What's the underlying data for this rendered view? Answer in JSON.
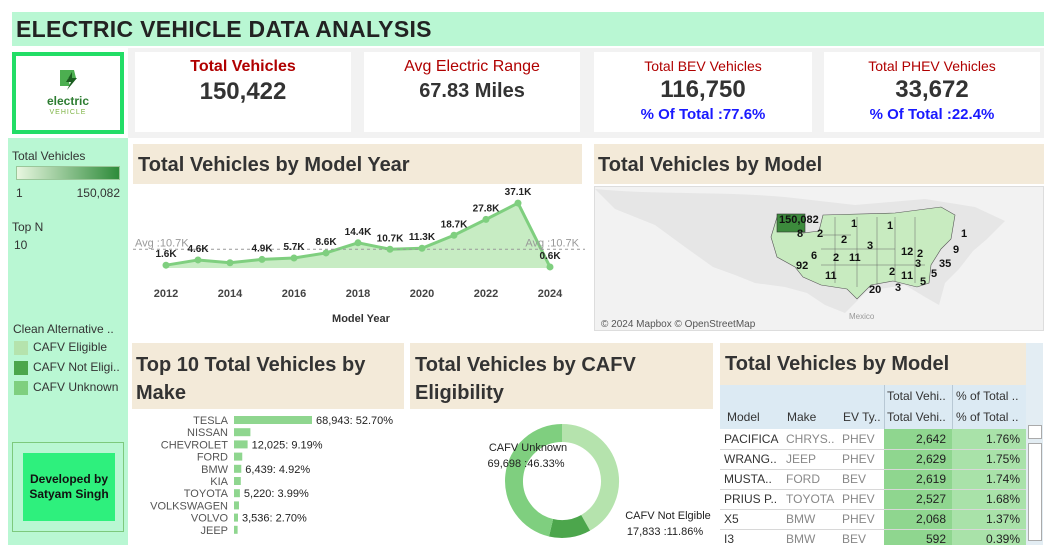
{
  "title": "ELECTRIC VEHICLE DATA ANALYSIS",
  "logo": {
    "line1": "electric",
    "line2": "VEHICLE"
  },
  "kpis": {
    "total_vehicles": {
      "label": "Total Vehicles",
      "value": "150,422"
    },
    "avg_range": {
      "label": "Avg Electric Range",
      "value": "67.83 Miles"
    },
    "bev": {
      "label": "Total BEV Vehicles",
      "value": "116,750",
      "pct": "% Of Total :77.6%"
    },
    "phev": {
      "label": "Total PHEV Vehicles",
      "value": "33,672",
      "pct": "% Of Total :22.4%"
    }
  },
  "sidebar": {
    "legend_title": "Total Vehicles",
    "legend_min": "1",
    "legend_max": "150,082",
    "topn_label": "Top N",
    "topn_value": "10",
    "cafv_title": "Clean Alternative ..",
    "cafv_items": [
      {
        "label": "CAFV  Eligible",
        "color": "#b5e3ad"
      },
      {
        "label": "CAFV Not Eligi..",
        "color": "#4ca64c"
      },
      {
        "label": "CAFV Unknown",
        "color": "#7fcf7f"
      }
    ],
    "developer": "Developed by Satyam Singh"
  },
  "year_chart": {
    "title": "Total Vehicles by Model Year",
    "xlabel": "Model Year",
    "avg_label": "Avg :10.7K",
    "x_ticks": [
      "2012",
      "2014",
      "2016",
      "2018",
      "2020",
      "2022",
      "2024"
    ],
    "chart_data": {
      "type": "area",
      "x": [
        2012,
        2013,
        2014,
        2015,
        2016,
        2017,
        2018,
        2019,
        2020,
        2021,
        2022,
        2023,
        2024
      ],
      "values": [
        1.6,
        4.6,
        3.0,
        4.9,
        5.7,
        8.6,
        14.4,
        10.7,
        11.3,
        18.7,
        27.8,
        37.1,
        0.6
      ],
      "labels": [
        "1.6K",
        "4.6K",
        "",
        "4.9K",
        "5.7K",
        "8.6K",
        "14.4K",
        "10.7K",
        "11.3K",
        "18.7K",
        "27.8K",
        "37.1K",
        "0.6K"
      ],
      "xlabel": "Model Year",
      "ylim": [
        0,
        40
      ],
      "avg": 10.7
    }
  },
  "map_panel": {
    "title": "Total Vehicles by Model",
    "credit": "© 2024 Mapbox © OpenStreetMap",
    "country_label": "Mexico",
    "state_labels": [
      "150,082",
      "8",
      "2",
      "1",
      "2",
      "3",
      "1",
      "92",
      "6",
      "2",
      "11",
      "12",
      "2",
      "3",
      "35",
      "9",
      "11",
      "2",
      "1",
      "5",
      "20",
      "3",
      "1",
      "5",
      "1"
    ]
  },
  "make_chart": {
    "title": "Top 10 Total Vehicles by Make",
    "chart_data": {
      "type": "bar",
      "categories": [
        "TESLA",
        "NISSAN",
        "CHEVROLET",
        "FORD",
        "BMW",
        "KIA",
        "TOYOTA",
        "VOLKSWAGEN",
        "VOLVO",
        "JEEP"
      ],
      "values": [
        68943,
        14500,
        12025,
        7300,
        6439,
        6000,
        5220,
        4400,
        3536,
        3200
      ],
      "labels": [
        "68,943: 52.70%",
        "",
        "12,025: 9.19%",
        "",
        "6,439: 4.92%",
        "",
        "5,220: 3.99%",
        "",
        "3,536: 2.70%",
        ""
      ]
    }
  },
  "cafv_chart": {
    "title": "Total Vehicles by CAFV Eligibility",
    "chart_data": {
      "type": "pie",
      "categories": [
        "CAFV  Eligible",
        "CAFV Not Elgible",
        "CAFV Unknown"
      ],
      "values": [
        62891,
        17833,
        69698
      ],
      "labels": [
        "",
        "CAFV Not Elgible 17,833 :11.86%",
        "CAFV Unknown 69,698 :46.33%"
      ]
    },
    "unknown_label": "CAFV Unknown",
    "unknown_value": "69,698 :46.33%",
    "notelig_label": "CAFV Not Elgible",
    "notelig_value": "17,833 :11.86%"
  },
  "model_table": {
    "title": "Total Vehicles by Model",
    "headers_top": [
      "",
      "",
      "",
      "Total Vehi..",
      "% of Total .."
    ],
    "headers": [
      "Model",
      "Make",
      "EV Ty..",
      "Total Vehi..",
      "% of Total .."
    ],
    "rows": [
      {
        "model": "PACIFICA",
        "make": "CHRYS..",
        "type": "PHEV",
        "total": "2,642",
        "pct": "1.76%"
      },
      {
        "model": "WRANG..",
        "make": "JEEP",
        "type": "PHEV",
        "total": "2,629",
        "pct": "1.75%"
      },
      {
        "model": "MUSTA..",
        "make": "FORD",
        "type": "BEV",
        "total": "2,619",
        "pct": "1.74%"
      },
      {
        "model": "PRIUS P..",
        "make": "TOYOTA",
        "type": "PHEV",
        "total": "2,527",
        "pct": "1.68%"
      },
      {
        "model": "X5",
        "make": "BMW",
        "type": "PHEV",
        "total": "2,068",
        "pct": "1.37%"
      },
      {
        "model": "I3",
        "make": "BMW",
        "type": "BEV",
        "total": "592",
        "pct": "0.39%"
      }
    ]
  }
}
